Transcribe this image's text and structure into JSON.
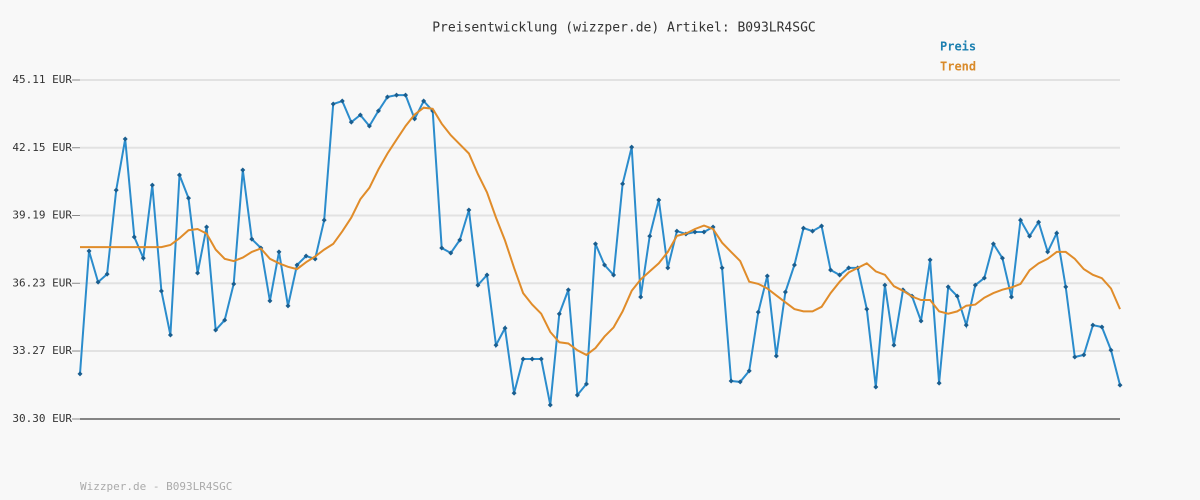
{
  "chart_data": {
    "type": "line",
    "title": "Preisentwicklung (wizzper.de) Artikel: B093LR4SGC",
    "footer": "Wizzper.de - B093LR4SGC",
    "ylim": [
      30.3,
      45.11
    ],
    "yticks": [
      {
        "value": 30.3,
        "label": "30.30 EUR"
      },
      {
        "value": 33.27,
        "label": "33.27 EUR"
      },
      {
        "value": 36.23,
        "label": "36.23 EUR"
      },
      {
        "value": 39.19,
        "label": "39.19 EUR"
      },
      {
        "value": 42.15,
        "label": "42.15 EUR"
      },
      {
        "value": 45.11,
        "label": "45.11 EUR"
      }
    ],
    "grid": true,
    "legend": "top-right",
    "series": [
      {
        "name": "Preis",
        "color": "#2b8ccc",
        "marker_color": "#1a5e8f",
        "legend_color": "#1b7fb0",
        "values": [
          32.27,
          37.64,
          36.28,
          36.63,
          40.3,
          42.53,
          38.25,
          37.33,
          40.52,
          35.89,
          33.97,
          40.96,
          39.95,
          36.68,
          38.69,
          34.19,
          34.62,
          36.2,
          41.18,
          38.16,
          37.77,
          35.46,
          37.6,
          35.24,
          37.03,
          37.42,
          37.29,
          38.99,
          44.06,
          44.19,
          43.27,
          43.58,
          43.1,
          43.76,
          44.37,
          44.45,
          44.45,
          43.41,
          44.19,
          43.76,
          37.77,
          37.55,
          38.12,
          39.43,
          36.15,
          36.59,
          33.53,
          34.27,
          31.43,
          32.92,
          32.92,
          32.92,
          30.91,
          34.89,
          35.94,
          31.35,
          31.83,
          37.95,
          37.03,
          36.59,
          40.57,
          42.18,
          35.63,
          38.29,
          39.87,
          36.9,
          38.51,
          38.38,
          38.47,
          38.47,
          38.69,
          36.9,
          31.96,
          31.92,
          32.4,
          34.97,
          36.55,
          33.05,
          35.85,
          37.03,
          38.64,
          38.51,
          38.73,
          36.81,
          36.59,
          36.9,
          36.9,
          35.1,
          31.7,
          36.15,
          33.53,
          35.94,
          35.67,
          34.58,
          37.25,
          31.87,
          36.07,
          35.67,
          34.4,
          36.15,
          36.46,
          37.95,
          37.33,
          35.63,
          38.99,
          38.29,
          38.9,
          37.6,
          38.42,
          36.07,
          33.01,
          33.1,
          34.4,
          34.32,
          33.31,
          31.78
        ]
      },
      {
        "name": "Trend",
        "color": "#e08c2a",
        "legend_color": "#d98a2a",
        "values": [
          37.81,
          37.81,
          37.81,
          37.81,
          37.81,
          37.81,
          37.81,
          37.81,
          37.81,
          37.81,
          37.9,
          38.2,
          38.55,
          38.6,
          38.4,
          37.7,
          37.3,
          37.2,
          37.35,
          37.6,
          37.75,
          37.3,
          37.1,
          36.95,
          36.85,
          37.15,
          37.4,
          37.7,
          37.95,
          38.5,
          39.1,
          39.9,
          40.4,
          41.2,
          41.9,
          42.5,
          43.1,
          43.6,
          43.9,
          43.85,
          43.2,
          42.7,
          42.3,
          41.9,
          41.0,
          40.2,
          39.1,
          38.1,
          36.9,
          35.8,
          35.3,
          34.9,
          34.1,
          33.65,
          33.6,
          33.3,
          33.1,
          33.4,
          33.9,
          34.3,
          35.0,
          35.9,
          36.4,
          36.75,
          37.1,
          37.6,
          38.3,
          38.4,
          38.6,
          38.75,
          38.6,
          38.0,
          37.6,
          37.2,
          36.3,
          36.2,
          36.0,
          35.7,
          35.4,
          35.1,
          35.0,
          35.0,
          35.2,
          35.8,
          36.3,
          36.7,
          36.9,
          37.1,
          36.75,
          36.6,
          36.1,
          35.9,
          35.65,
          35.5,
          35.5,
          35.0,
          34.9,
          35.0,
          35.25,
          35.3,
          35.6,
          35.8,
          35.95,
          36.05,
          36.2,
          36.8,
          37.1,
          37.3,
          37.6,
          37.6,
          37.3,
          36.85,
          36.6,
          36.45,
          36.0,
          35.1
        ]
      }
    ]
  }
}
